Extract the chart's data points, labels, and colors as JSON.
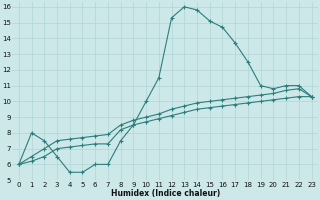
{
  "xlabel": "Humidex (Indice chaleur)",
  "bg_color": "#cce8e8",
  "line_color": "#2d7d7d",
  "grid_color": "#b0d4d4",
  "xlim": [
    -0.5,
    23.5
  ],
  "ylim": [
    5,
    16.3
  ],
  "xticks": [
    0,
    1,
    2,
    3,
    4,
    5,
    6,
    7,
    8,
    9,
    10,
    11,
    12,
    13,
    14,
    15,
    16,
    17,
    18,
    19,
    20,
    21,
    22,
    23
  ],
  "yticks": [
    5,
    6,
    7,
    8,
    9,
    10,
    11,
    12,
    13,
    14,
    15,
    16
  ],
  "curve1_x": [
    0,
    1,
    2,
    3,
    4,
    5,
    6,
    7,
    8,
    9,
    10,
    11,
    12,
    13,
    14,
    15,
    16,
    17,
    18,
    19,
    20,
    21,
    22,
    23
  ],
  "curve1_y": [
    6.0,
    8.0,
    7.5,
    6.5,
    5.5,
    5.5,
    6.0,
    6.0,
    7.5,
    8.5,
    10.0,
    11.5,
    15.3,
    16.0,
    15.8,
    15.1,
    14.7,
    13.7,
    12.5,
    11.0,
    10.8,
    11.0,
    11.0,
    10.3
  ],
  "curve2_x": [
    0,
    1,
    2,
    3,
    4,
    5,
    6,
    7,
    8,
    9,
    10,
    11,
    12,
    13,
    14,
    15,
    16,
    17,
    18,
    19,
    20,
    21,
    22,
    23
  ],
  "curve2_y": [
    6.0,
    6.5,
    7.0,
    7.5,
    7.6,
    7.7,
    7.8,
    7.9,
    8.5,
    8.8,
    9.0,
    9.2,
    9.5,
    9.7,
    9.9,
    10.0,
    10.1,
    10.2,
    10.3,
    10.4,
    10.5,
    10.7,
    10.8,
    10.3
  ],
  "curve3_x": [
    0,
    1,
    2,
    3,
    4,
    5,
    6,
    7,
    8,
    9,
    10,
    11,
    12,
    13,
    14,
    15,
    16,
    17,
    18,
    19,
    20,
    21,
    22,
    23
  ],
  "curve3_y": [
    6.0,
    6.2,
    6.5,
    7.0,
    7.1,
    7.2,
    7.3,
    7.3,
    8.2,
    8.5,
    8.7,
    8.9,
    9.1,
    9.3,
    9.5,
    9.6,
    9.7,
    9.8,
    9.9,
    10.0,
    10.1,
    10.2,
    10.3,
    10.3
  ]
}
